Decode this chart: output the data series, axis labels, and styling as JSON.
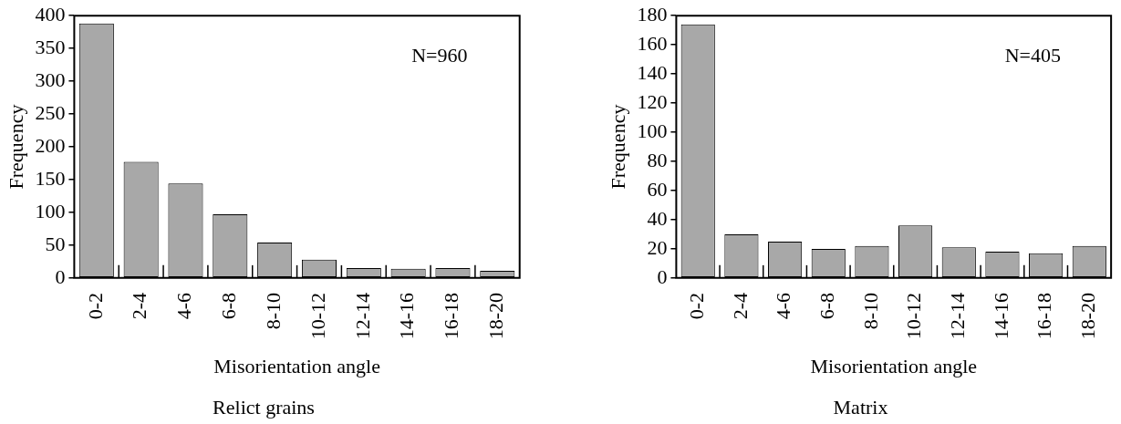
{
  "chart_data": [
    {
      "type": "bar",
      "title": "Relict grains",
      "xlabel": "Misorientation angle",
      "ylabel": "Frequency",
      "categories": [
        "0-2",
        "2-4",
        "4-6",
        "6-8",
        "8-10",
        "10-12",
        "12-14",
        "14-16",
        "16-18",
        "18-20"
      ],
      "values": [
        388,
        177,
        144,
        97,
        54,
        28,
        15,
        14,
        15,
        11
      ],
      "color": "#a8a8a8",
      "ylim": [
        0,
        400
      ],
      "yticks": [
        0,
        50,
        100,
        150,
        200,
        250,
        300,
        350,
        400
      ],
      "annotations": [
        "N=960"
      ],
      "grid": false,
      "legend": false
    },
    {
      "type": "bar",
      "title": "Matrix",
      "xlabel": "Misorientation angle",
      "ylabel": "Frequency",
      "categories": [
        "0-2",
        "2-4",
        "4-6",
        "6-8",
        "8-10",
        "10-12",
        "12-14",
        "14-16",
        "16-18",
        "18-20"
      ],
      "values": [
        174,
        30,
        25,
        20,
        22,
        36,
        21,
        18,
        17,
        22
      ],
      "color": "#a8a8a8",
      "ylim": [
        0,
        180
      ],
      "yticks": [
        0,
        20,
        40,
        60,
        80,
        100,
        120,
        140,
        160,
        180
      ],
      "annotations": [
        "N=405"
      ],
      "grid": false,
      "legend": false
    }
  ]
}
